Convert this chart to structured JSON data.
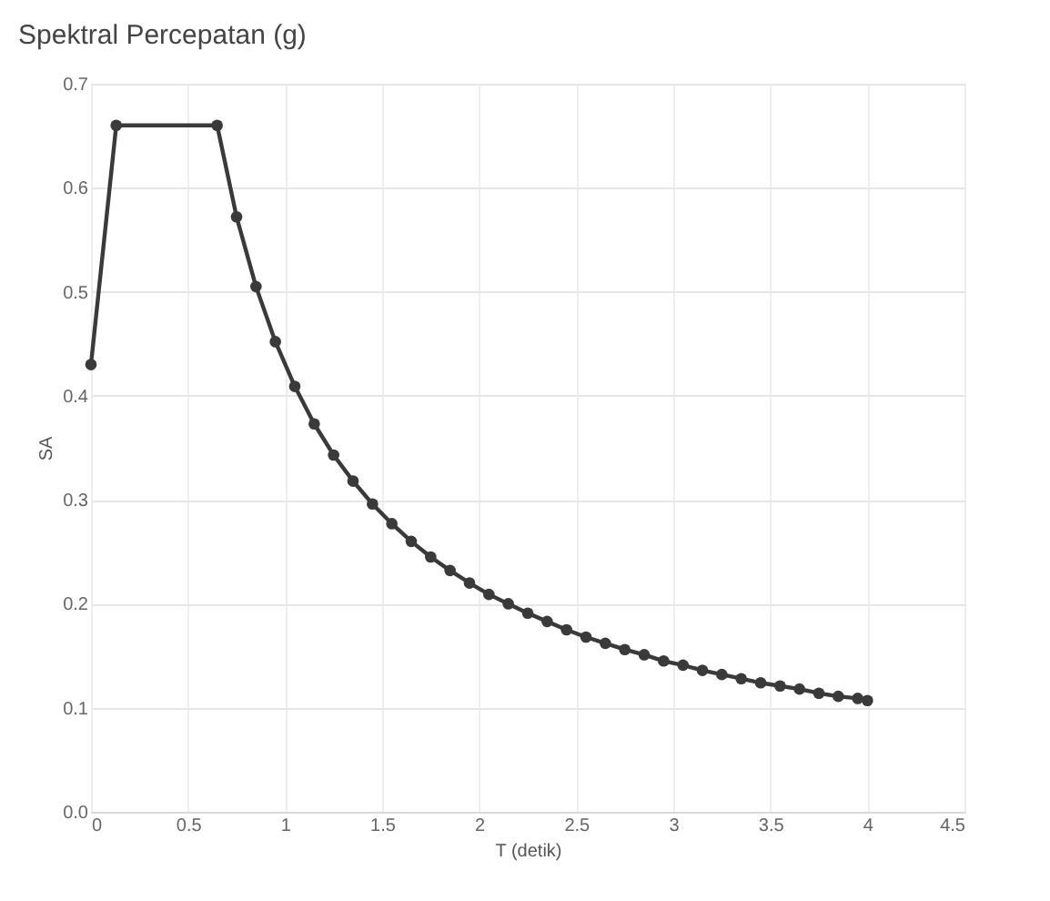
{
  "chart_data": {
    "type": "line",
    "title": "Spektral Percepatan (g)",
    "xlabel": "T (detik)",
    "ylabel": "SA",
    "series": [
      {
        "color": "#3a3a3a",
        "x": [
          0,
          0.13,
          0.65,
          0.75,
          0.85,
          0.95,
          1.05,
          1.15,
          1.25,
          1.35,
          1.45,
          1.55,
          1.65,
          1.75,
          1.85,
          1.95,
          2.05,
          2.15,
          2.25,
          2.35,
          2.45,
          2.55,
          2.65,
          2.75,
          2.85,
          2.95,
          3.05,
          3.15,
          3.25,
          3.35,
          3.45,
          3.55,
          3.65,
          3.75,
          3.85,
          3.95,
          4.0
        ],
        "values": [
          0.43,
          0.66,
          0.66,
          0.572,
          0.505,
          0.452,
          0.409,
          0.373,
          0.343,
          0.318,
          0.296,
          0.277,
          0.26,
          0.245,
          0.232,
          0.22,
          0.209,
          0.2,
          0.191,
          0.183,
          0.175,
          0.168,
          0.162,
          0.156,
          0.151,
          0.145,
          0.141,
          0.136,
          0.132,
          0.128,
          0.124,
          0.121,
          0.118,
          0.114,
          0.111,
          0.109,
          0.107
        ]
      }
    ],
    "xlim": [
      0,
      4.5
    ],
    "xticks": [
      0,
      0.5,
      1,
      1.5,
      2,
      2.5,
      3,
      3.5,
      4,
      4.5
    ],
    "ylim": [
      0,
      0.7
    ],
    "yticks": [
      {
        "value": 0,
        "label": "0.0"
      },
      0.1,
      0.2,
      0.3,
      0.4,
      0.5,
      0.6,
      0.7
    ],
    "grid": true,
    "marker": "circle",
    "line_style": "solid"
  }
}
